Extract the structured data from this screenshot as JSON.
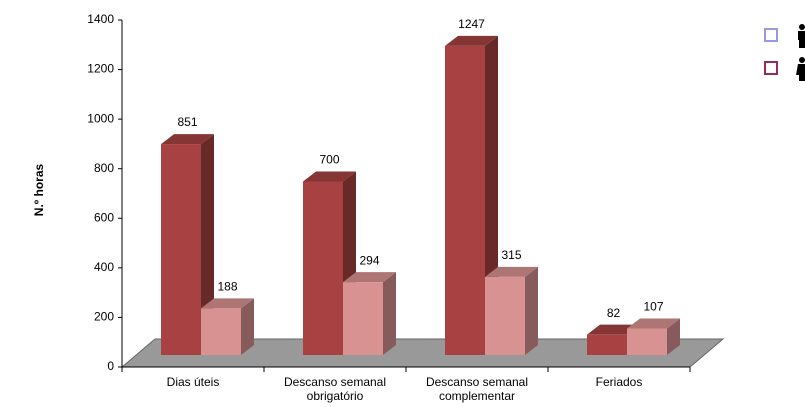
{
  "chart_data": {
    "type": "bar3d",
    "y_label": "N.º horas",
    "categories": [
      "Dias úteis",
      "Descanso semanal obrigatório",
      "Descanso semanal complementar",
      "Feriados"
    ],
    "series": [
      {
        "color": "#a84242",
        "legend_color": "#9a9ae0",
        "values": [
          851,
          700,
          1247,
          82
        ]
      },
      {
        "color": "#d99292",
        "legend_color": "#9a2a5a",
        "values": [
          188,
          294,
          315,
          107
        ]
      }
    ],
    "ylim": [
      0,
      1400
    ],
    "yticks": [
      0,
      200,
      400,
      600,
      800,
      1000,
      1200,
      1400
    ]
  }
}
